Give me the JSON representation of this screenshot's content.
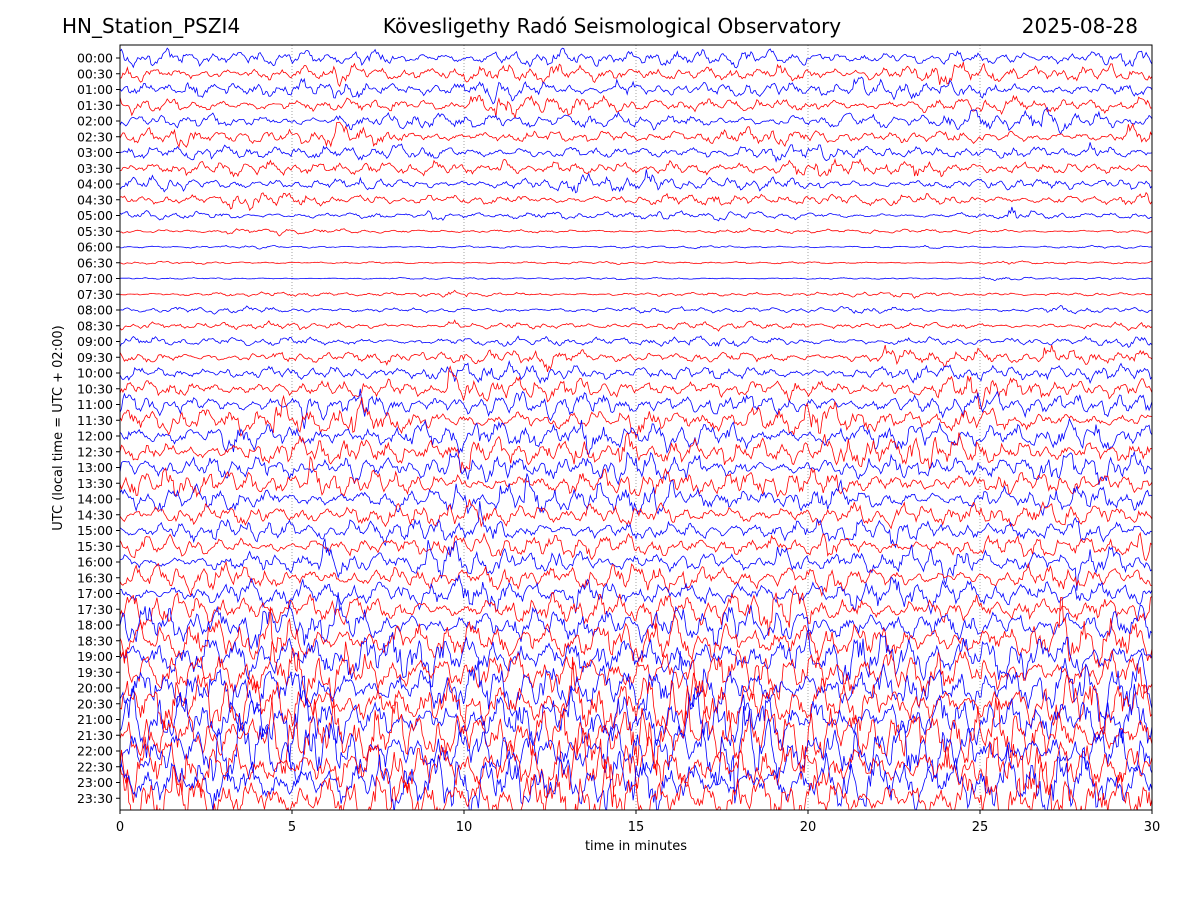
{
  "header": {
    "station": "HN_Station_PSZI4",
    "observatory": "Kövesligethy Radó Seismological Observatory",
    "date": "2025-08-28"
  },
  "chart_data": {
    "type": "line",
    "title": "Kövesligethy Radó Seismological Observatory",
    "xlabel": "time in minutes",
    "ylabel": "UTC (local time = UTC + 02:00)",
    "xlim": [
      0,
      30
    ],
    "x_ticks": [
      "0",
      "5",
      "10",
      "15",
      "20",
      "25",
      "30"
    ],
    "x_tick_values": [
      0,
      5,
      10,
      15,
      20,
      25,
      30
    ],
    "grid": "vertical dotted at each x tick",
    "trace_colors": [
      "#0000ff",
      "#ff0000"
    ],
    "rows": [
      "00:00",
      "00:30",
      "01:00",
      "01:30",
      "02:00",
      "02:30",
      "03:00",
      "03:30",
      "04:00",
      "04:30",
      "05:00",
      "05:30",
      "06:00",
      "06:30",
      "07:00",
      "07:30",
      "08:00",
      "08:30",
      "09:00",
      "09:30",
      "10:00",
      "10:30",
      "11:00",
      "11:30",
      "12:00",
      "12:30",
      "13:00",
      "13:30",
      "14:00",
      "14:30",
      "15:00",
      "15:30",
      "16:00",
      "16:30",
      "17:00",
      "17:30",
      "18:00",
      "18:30",
      "19:00",
      "19:30",
      "20:00",
      "20:30",
      "21:00",
      "21:30",
      "22:00",
      "22:30",
      "23:00",
      "23:30"
    ],
    "relative_amplitude": [
      1.0,
      1.05,
      1.0,
      0.95,
      0.95,
      0.9,
      0.9,
      0.85,
      0.75,
      0.75,
      0.45,
      0.25,
      0.15,
      0.15,
      0.12,
      0.25,
      0.35,
      0.45,
      0.6,
      0.8,
      1.0,
      1.2,
      1.4,
      1.5,
      1.6,
      1.6,
      1.6,
      1.55,
      1.5,
      1.45,
      1.35,
      1.3,
      1.4,
      1.5,
      1.7,
      1.9,
      2.2,
      2.5,
      2.8,
      3.0,
      3.2,
      3.3,
      3.4,
      3.5,
      3.5,
      3.5,
      3.5,
      3.4
    ]
  }
}
